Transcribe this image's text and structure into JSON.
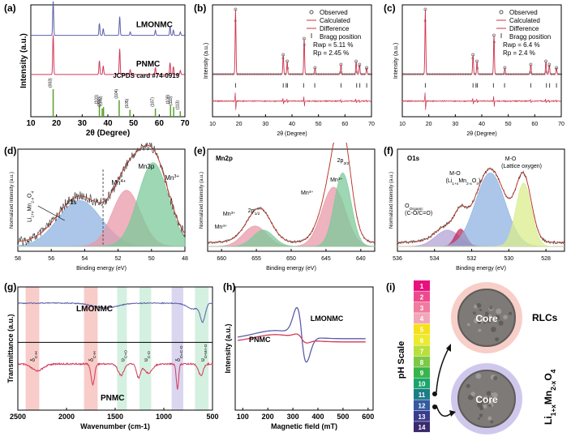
{
  "chart_data": [
    {
      "id": "a",
      "type": "line",
      "panel_label": "(a)",
      "xlabel": "2θ (Degree)",
      "ylabel": "Intensity (a.u.)",
      "xlim": [
        10,
        70
      ],
      "xticks": [
        10,
        20,
        30,
        40,
        50,
        60,
        70
      ],
      "series": [
        {
          "name": "LMONMC",
          "color": "#5b5fa8",
          "offset": 0.8,
          "scale": 0.16,
          "peaks": [
            [
              18.7,
              1.0
            ],
            [
              36.7,
              0.35
            ],
            [
              38.2,
              0.2
            ],
            [
              44.6,
              0.55
            ],
            [
              48.7,
              0.1
            ],
            [
              58.5,
              0.15
            ],
            [
              64.2,
              0.25
            ],
            [
              65.5,
              0.15
            ],
            [
              68.2,
              0.1
            ]
          ]
        },
        {
          "name": "PNMC",
          "color": "#d23a5a",
          "offset": 0.45,
          "scale": 0.22,
          "peaks": [
            [
              18.7,
              1.0
            ],
            [
              36.7,
              0.35
            ],
            [
              38.2,
              0.22
            ],
            [
              44.6,
              0.65
            ],
            [
              48.7,
              0.12
            ],
            [
              58.5,
              0.18
            ],
            [
              64.2,
              0.3
            ],
            [
              65.5,
              0.2
            ],
            [
              68.2,
              0.1
            ]
          ]
        }
      ],
      "reference": {
        "name": "JCPDS card  #74-0919",
        "color": "#5aa02c",
        "lines": [
          [
            18.7,
            1.0,
            "(003)"
          ],
          [
            36.7,
            0.4,
            "(101)"
          ],
          [
            37.8,
            0.3,
            "(006)"
          ],
          [
            38.3,
            0.35,
            "(102)"
          ],
          [
            44.4,
            0.6,
            "(104)"
          ],
          [
            48.6,
            0.25,
            "(105)"
          ],
          [
            58.5,
            0.3,
            "(107)"
          ],
          [
            64.4,
            0.4,
            "(108)"
          ],
          [
            65.6,
            0.35,
            "(110)"
          ],
          [
            68.2,
            0.2,
            "(113)"
          ]
        ]
      }
    },
    {
      "id": "b",
      "type": "line",
      "panel_label": "(b)",
      "xlabel": "2θ (Degree)",
      "ylabel": "Intensity (a.u.)",
      "xlim": [
        10,
        70
      ],
      "xticks": [
        10,
        20,
        30,
        40,
        50,
        60,
        70
      ],
      "legend": [
        "Observed",
        "Calculated",
        "Difference",
        "Bragg position"
      ],
      "stats": [
        "Rwp = 5.11 %",
        "Rp = 2.45 %"
      ],
      "peaks": [
        [
          18.7,
          1.0
        ],
        [
          36.7,
          0.3
        ],
        [
          38.2,
          0.2
        ],
        [
          44.6,
          0.55
        ],
        [
          48.7,
          0.1
        ],
        [
          58.5,
          0.15
        ],
        [
          64.2,
          0.2
        ],
        [
          65.5,
          0.15
        ],
        [
          68.2,
          0.1
        ]
      ],
      "bragg": [
        18.7,
        36.7,
        37.8,
        38.3,
        44.4,
        48.6,
        58.5,
        64.4,
        65.6,
        68.2
      ]
    },
    {
      "id": "c",
      "type": "line",
      "panel_label": "(c)",
      "xlabel": "2θ (Degree)",
      "ylabel": "Intensity (a.u.)",
      "xlim": [
        10,
        70
      ],
      "xticks": [
        10,
        20,
        30,
        40,
        50,
        60,
        70
      ],
      "legend": [
        "Observed",
        "Calculated",
        "Difference",
        "Bragg position"
      ],
      "stats": [
        "Rwp = 6.4 %",
        "Rp = 2.4 %"
      ],
      "peaks": [
        [
          18.7,
          1.0
        ],
        [
          36.7,
          0.3
        ],
        [
          38.2,
          0.2
        ],
        [
          44.6,
          0.6
        ],
        [
          48.7,
          0.1
        ],
        [
          58.5,
          0.15
        ],
        [
          64.2,
          0.2
        ],
        [
          65.5,
          0.15
        ],
        [
          68.2,
          0.1
        ]
      ],
      "bragg": [
        18.7,
        36.7,
        37.8,
        38.3,
        44.4,
        48.6,
        58.5,
        64.4,
        65.6,
        68.2
      ]
    },
    {
      "id": "d",
      "type": "area",
      "panel_label": "(d)",
      "xlabel": "Binding energy (eV)",
      "ylabel": "Normalized Intensity (a.u.)",
      "xlim": [
        58,
        48
      ],
      "xticks": [
        58,
        56,
        54,
        52,
        50,
        48
      ],
      "labels": [
        "Li1s",
        "Li1+xMn2-xO4",
        "Mn4+",
        "Mn3p",
        "Mn3+"
      ],
      "components": [
        {
          "name": "Li1s",
          "center": 54.3,
          "width": 1.3,
          "height": 0.45,
          "color": "#8fb3e0"
        },
        {
          "name": "Mn4+",
          "center": 51.5,
          "width": 0.85,
          "height": 0.55,
          "color": "#e89aa8"
        },
        {
          "name": "Mn3+",
          "center": 49.9,
          "width": 0.9,
          "height": 0.82,
          "color": "#7cc99a"
        }
      ]
    },
    {
      "id": "e",
      "type": "area",
      "panel_label": "(e)",
      "xlabel": "Binding energy (eV)",
      "ylabel": "Normalized Intensity (a.u.)",
      "title": "Mn2p",
      "xlim": [
        662,
        638
      ],
      "xticks": [
        660,
        655,
        650,
        645,
        640
      ],
      "labels": [
        "2p1/2",
        "Mn3+",
        "Mn4+",
        "2p3/2",
        "Mn3+",
        "Mn4+"
      ],
      "components": [
        {
          "name": "Mn4+ 2p1/2",
          "center": 655.2,
          "width": 1.7,
          "height": 0.2,
          "color": "#e89aa8"
        },
        {
          "name": "Mn3+ 2p1/2",
          "center": 654.0,
          "width": 1.5,
          "height": 0.16,
          "color": "#7cc99a"
        },
        {
          "name": "Mn4+ 2p3/2",
          "center": 643.9,
          "width": 1.7,
          "height": 0.58,
          "color": "#e89aa8"
        },
        {
          "name": "Mn3+ 2p3/2",
          "center": 642.6,
          "width": 1.2,
          "height": 0.72,
          "color": "#7cc99a"
        }
      ]
    },
    {
      "id": "f",
      "type": "area",
      "panel_label": "(f)",
      "xlabel": "Binding energy (eV)",
      "ylabel": "Normalized Intensity (a.u.)",
      "title": "O1s",
      "xlim": [
        536,
        527
      ],
      "xticks": [
        536,
        534,
        532,
        530,
        528
      ],
      "labels": [
        "M-O",
        "(Li1+xMn2-xO4)",
        "M-O",
        "(Lattice oxygen)",
        "OOrganic",
        "(C-O/C=O)"
      ],
      "components": [
        {
          "name": "OOrganic",
          "center": 533.3,
          "width": 0.65,
          "height": 0.16,
          "color": "#b3a3d6"
        },
        {
          "name": "C=O",
          "center": 532.6,
          "width": 0.3,
          "height": 0.17,
          "color": "#c22a5a"
        },
        {
          "name": "M-O (Li1+xMn2-xO4)",
          "center": 531.0,
          "width": 0.8,
          "height": 0.72,
          "color": "#8fb3e0"
        },
        {
          "name": "M-O (Lattice oxygen)",
          "center": 529.2,
          "width": 0.42,
          "height": 0.62,
          "color": "#d9ec8c"
        }
      ]
    },
    {
      "id": "g",
      "type": "line",
      "panel_label": "(g)",
      "xlabel": "Wavenumber (cm-1)",
      "ylabel": "Transmittance (a.u.)",
      "xlim": [
        2500,
        500
      ],
      "xticks": [
        2500,
        2000,
        1500,
        1000,
        500
      ],
      "series": [
        {
          "name": "LMONMC",
          "color": "#5b5fa8"
        },
        {
          "name": "PNMC",
          "color": "#d23a5a"
        }
      ],
      "bands": [
        {
          "label": "δC-H",
          "from": 2420,
          "to": 2280,
          "color": "#f6c7c3"
        },
        {
          "label": "δC-H",
          "from": 1820,
          "to": 1680,
          "color": "#f6c7c3"
        },
        {
          "label": "υC=O",
          "from": 1480,
          "to": 1380,
          "color": "#cfeedd"
        },
        {
          "label": "υC-O",
          "from": 1250,
          "to": 1130,
          "color": "#cfeedd"
        },
        {
          "label": "δO=C-O",
          "from": 920,
          "to": 800,
          "color": "#d7d2ee"
        },
        {
          "label": "υO-Mn-O",
          "from": 680,
          "to": 540,
          "color": "#cfeedd"
        }
      ]
    },
    {
      "id": "h",
      "type": "line",
      "panel_label": "(h)",
      "xlabel": "Magnetic field (mT)",
      "ylabel": "Intensity (a.u.)",
      "xlim": [
        70,
        620
      ],
      "xticks": [
        100,
        200,
        300,
        400,
        500,
        600
      ],
      "series": [
        {
          "name": "LMONMC",
          "color": "#5b5fa8"
        },
        {
          "name": "PNMC",
          "color": "#d23a5a"
        }
      ]
    },
    {
      "id": "i",
      "type": "other",
      "panel_label": "(i)",
      "ylabel": "pH Scale",
      "scale": [
        "1",
        "2",
        "3",
        "4",
        "5",
        "6",
        "7",
        "8",
        "9",
        "10",
        "11",
        "12",
        "13",
        "14"
      ],
      "scale_colors": [
        "#e8117e",
        "#ed4a8c",
        "#f07ba0",
        "#f2a7b8",
        "#f6e01c",
        "#ecea2d",
        "#b9df3c",
        "#7ec944",
        "#38b54a",
        "#1aa56b",
        "#1c7d88",
        "#345aa0",
        "#3a3c8e",
        "#3a2a6e"
      ],
      "core_label": "Core",
      "shells": [
        {
          "name": "RLCs",
          "color": "#f3a59b"
        },
        {
          "name": "Li1+xMn2-xO4",
          "color": "#a99bdc"
        }
      ]
    }
  ]
}
